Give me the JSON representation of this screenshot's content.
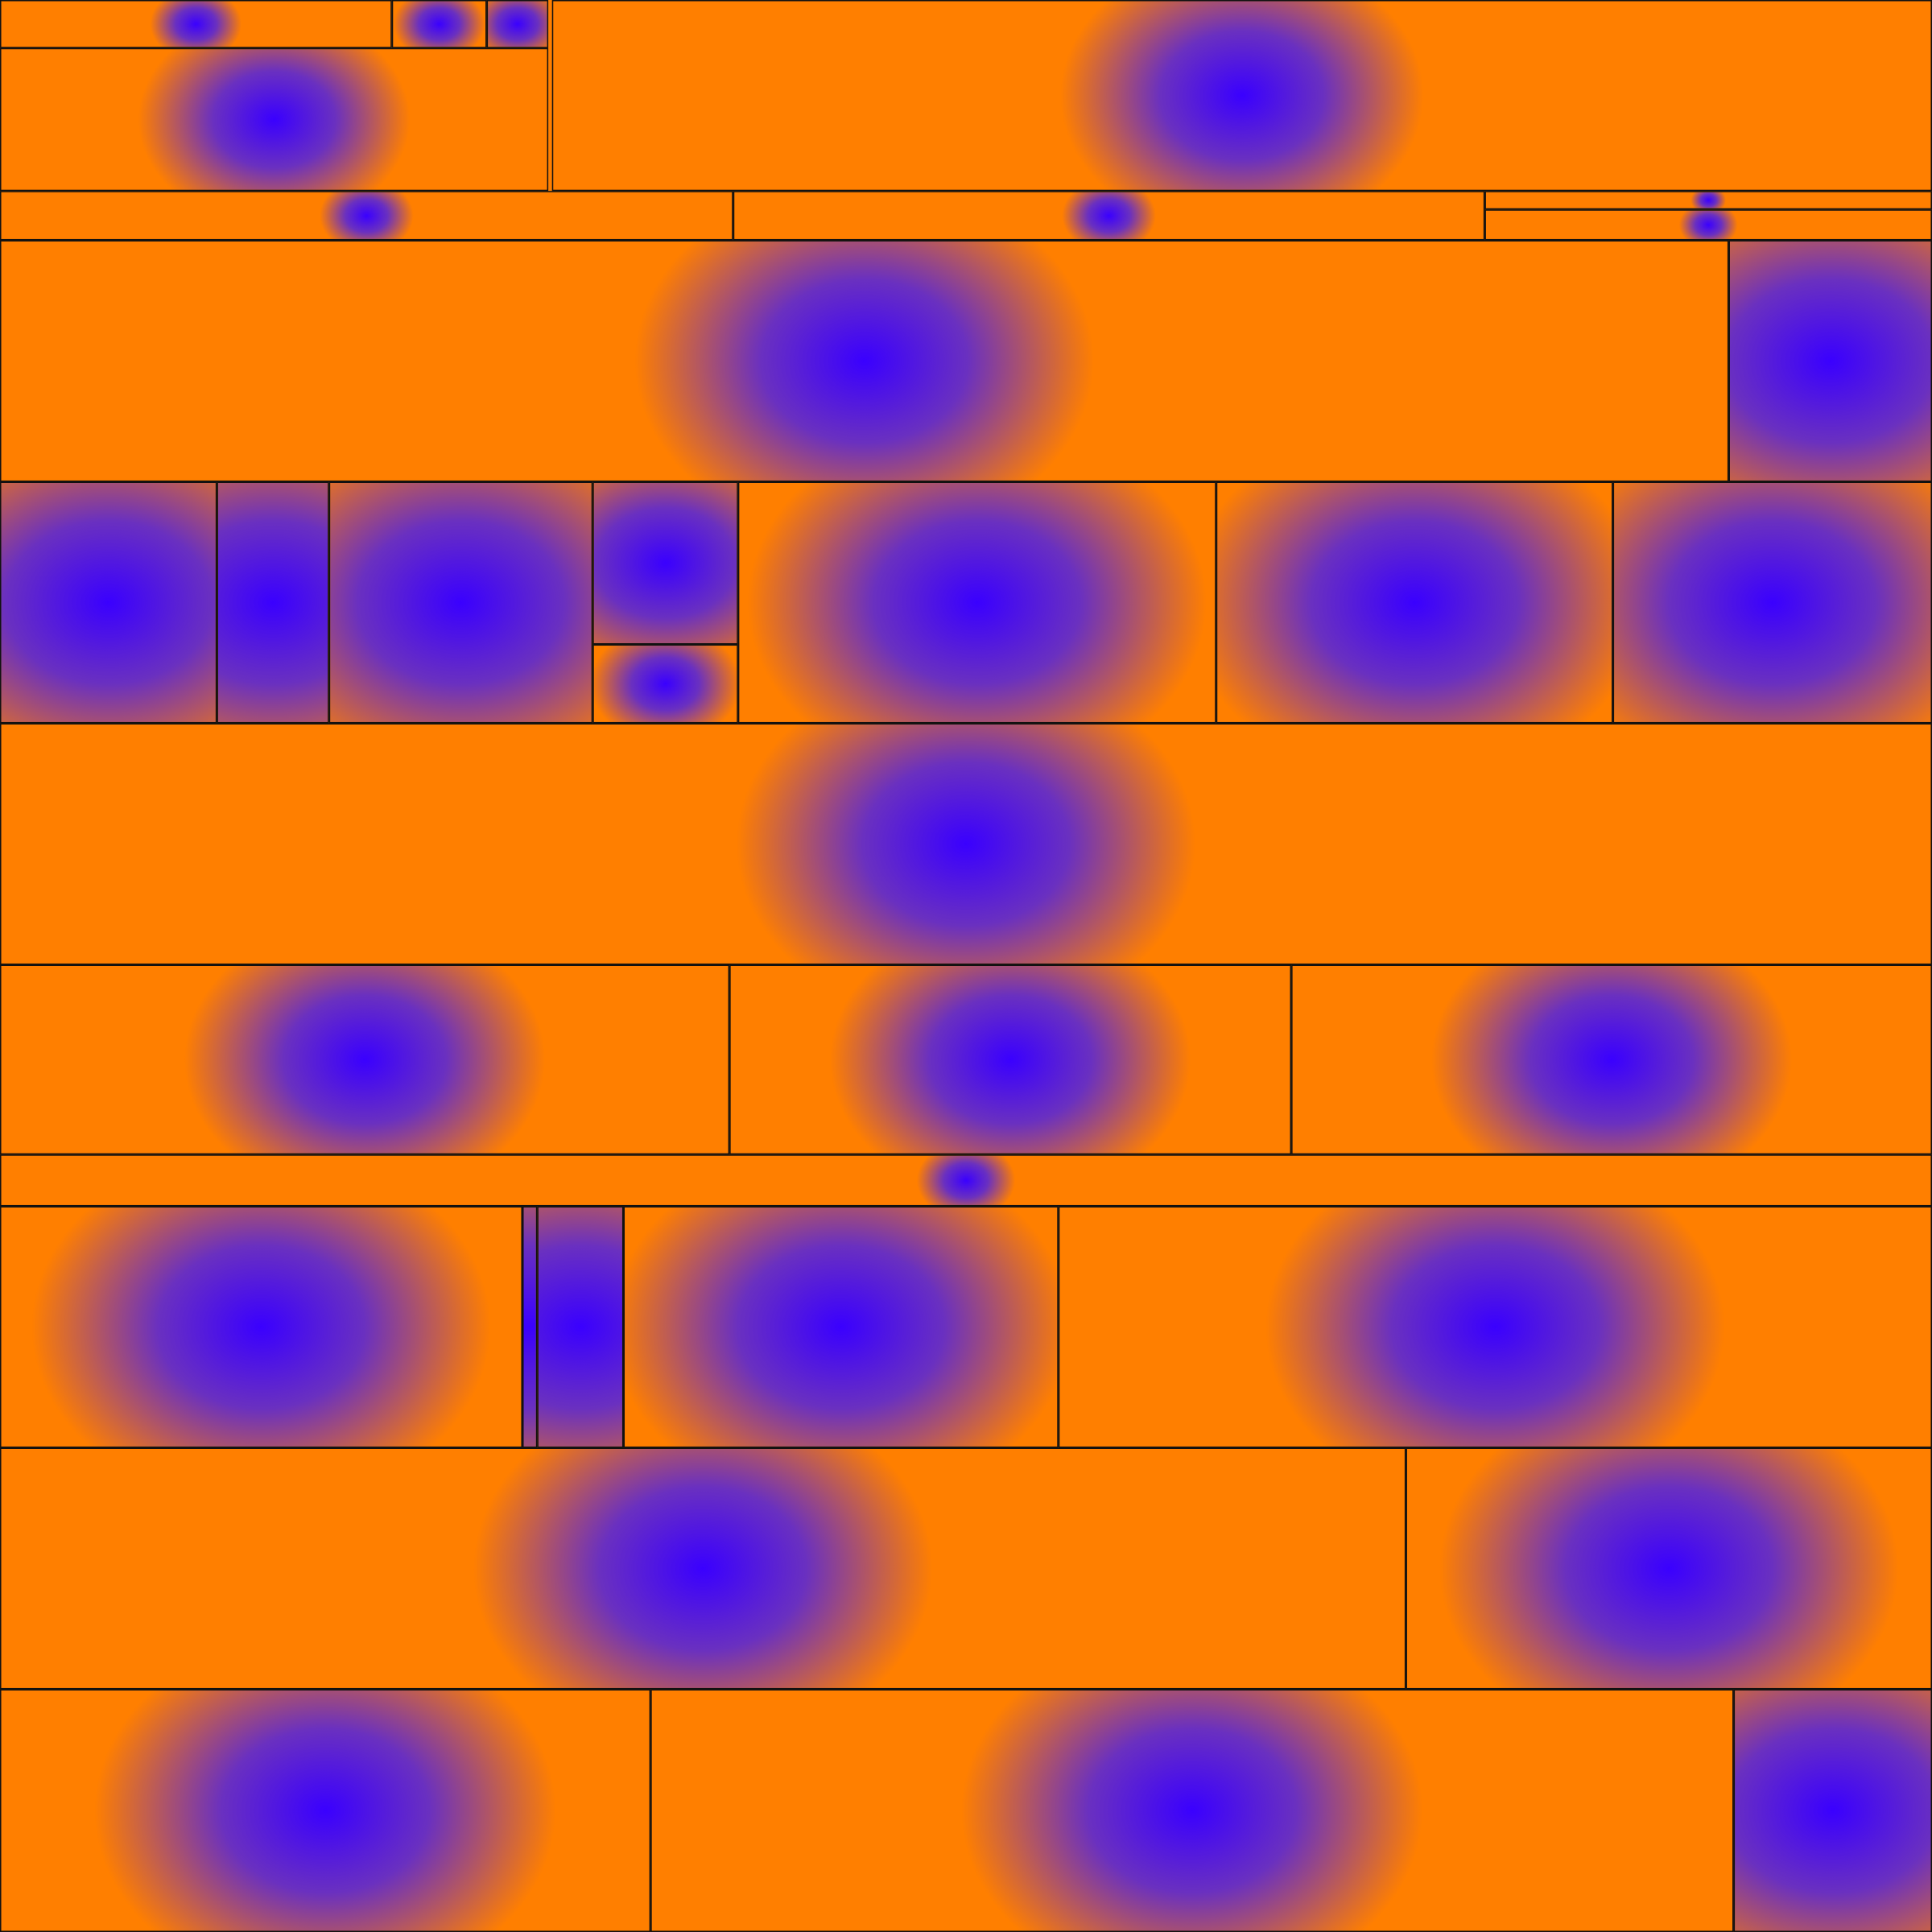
{
  "palette": {
    "background": "#ff7f00",
    "blob_center": "#3a00ff",
    "blob_mid": "#6a30c0",
    "border": "#111111"
  }
}
